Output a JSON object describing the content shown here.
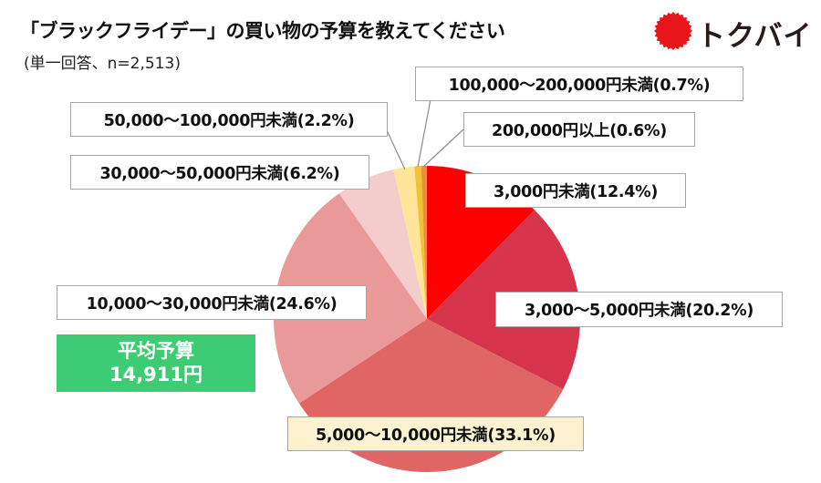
{
  "header": {
    "title": "「ブラックフライデー」の買い物の予算を教えてください",
    "subtitle": "(単一回答、n=2,513)"
  },
  "logo": {
    "icon": "red-sunburst-icon",
    "text": "トクバイ",
    "color": "#e8161b"
  },
  "average_box": {
    "label": "平均予算",
    "value": "14,911円",
    "color": "#3dcc73"
  },
  "labels": [
    {
      "text": "3,000円未満(12.4%)"
    },
    {
      "text": "3,000〜5,000円未満(20.2%)"
    },
    {
      "text": "5,000〜10,000円未満(33.1%)"
    },
    {
      "text": "10,000〜30,000円未満(24.6%)"
    },
    {
      "text": "30,000〜50,000円未満(6.2%)"
    },
    {
      "text": "50,000〜100,000円未満(2.2%)"
    },
    {
      "text": "100,000〜200,000円未満(0.7%)"
    },
    {
      "text": "200,000円以上(0.6%)"
    }
  ],
  "chart_data": {
    "type": "pie",
    "title": "「ブラックフライデー」の買い物の予算を教えてください",
    "subtitle": "(単一回答、n=2,513)",
    "categories": [
      "3,000円未満",
      "3,000〜5,000円未満",
      "5,000〜10,000円未満",
      "10,000〜30,000円未満",
      "30,000〜50,000円未満",
      "50,000〜100,000円未満",
      "100,000〜200,000円未満",
      "200,000円以上"
    ],
    "values": [
      12.4,
      20.2,
      33.1,
      24.6,
      6.2,
      2.2,
      0.7,
      0.6
    ],
    "colors": [
      "#ff0000",
      "#d6344d",
      "#e06666",
      "#ea9999",
      "#f4cccc",
      "#ffe599",
      "#f1c232",
      "#e69138"
    ],
    "unit": "%",
    "start_angle": "12 o'clock, clockwise",
    "annotation": "平均予算 14,911円",
    "n": 2513,
    "legend": "none (data labels with leader lines)"
  }
}
